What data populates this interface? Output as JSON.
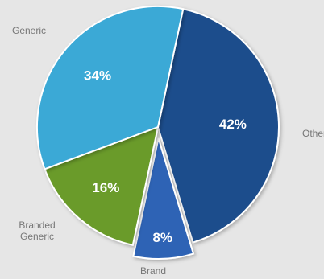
{
  "chart_data": {
    "type": "pie",
    "slices": [
      {
        "label": "Other",
        "value": 42,
        "value_label": "42%",
        "color": "#1e4d8c"
      },
      {
        "label": "Brand",
        "value": 8,
        "value_label": "8%",
        "color": "#2e64b5",
        "exploded": true
      },
      {
        "label": "Branded Generic",
        "value": 16,
        "value_label": "16%",
        "color": "#6b9b2a"
      },
      {
        "label": "Generic",
        "value": 34,
        "value_label": "34%",
        "color": "#3aa9d6"
      }
    ],
    "legend": "none"
  }
}
